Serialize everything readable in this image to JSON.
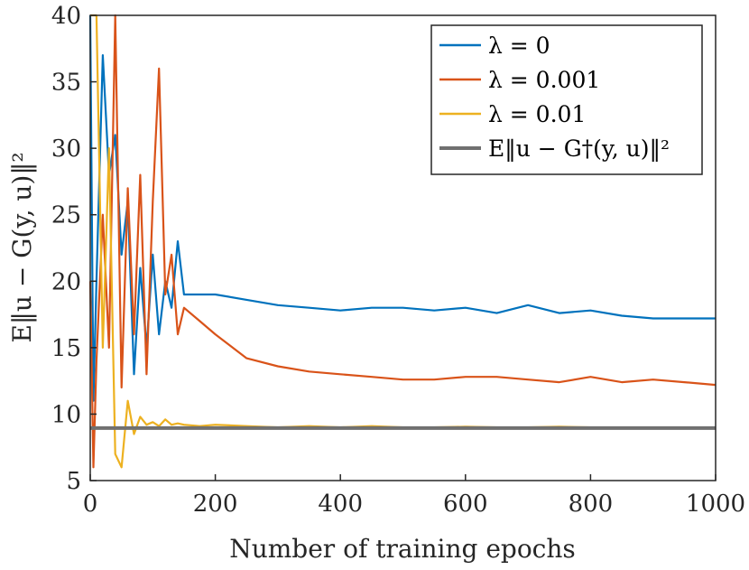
{
  "chart_data": {
    "type": "line",
    "title": "",
    "xlabel": "Number of training epochs",
    "ylabel": "E‖u − G(y, u)‖²",
    "xlim": [
      0,
      1000
    ],
    "ylim": [
      5,
      40
    ],
    "xticks": [
      0,
      200,
      400,
      600,
      800,
      1000
    ],
    "yticks": [
      5,
      10,
      15,
      20,
      25,
      30,
      35,
      40
    ],
    "xtick_labels": [
      "0",
      "200",
      "400",
      "600",
      "800",
      "1000"
    ],
    "ytick_labels": [
      "5",
      "10",
      "15",
      "20",
      "25",
      "30",
      "35",
      "40"
    ],
    "grid": false,
    "legend_position": "top-right",
    "series": [
      {
        "name": "λ = 0",
        "color": "#0072BD",
        "x": [
          0,
          5,
          10,
          20,
          30,
          40,
          50,
          60,
          70,
          80,
          90,
          100,
          110,
          120,
          130,
          140,
          150,
          175,
          200,
          250,
          300,
          350,
          400,
          450,
          500,
          550,
          600,
          650,
          700,
          750,
          800,
          850,
          900,
          950,
          1000
        ],
        "values": [
          40,
          11,
          20,
          37,
          28,
          31,
          22,
          26,
          13,
          21,
          15,
          22,
          16,
          20,
          18,
          23,
          19,
          19,
          19,
          18.6,
          18.2,
          18.0,
          17.8,
          18.0,
          18.0,
          17.8,
          18.0,
          17.6,
          18.2,
          17.6,
          17.8,
          17.4,
          17.2,
          17.2,
          17.2
        ]
      },
      {
        "name": "λ = 0.001",
        "color": "#D95319",
        "x": [
          0,
          5,
          10,
          20,
          30,
          40,
          50,
          60,
          70,
          80,
          90,
          100,
          110,
          120,
          130,
          140,
          150,
          175,
          200,
          250,
          300,
          350,
          400,
          450,
          500,
          550,
          600,
          650,
          700,
          750,
          800,
          850,
          900,
          950,
          1000
        ],
        "values": [
          20,
          6,
          14,
          25,
          15,
          40,
          12,
          27,
          16,
          28,
          13,
          26,
          36,
          19,
          22,
          16,
          18,
          17,
          16,
          14.2,
          13.6,
          13.2,
          13.0,
          12.8,
          12.6,
          12.6,
          12.8,
          12.8,
          12.6,
          12.4,
          12.8,
          12.4,
          12.6,
          12.4,
          12.2
        ]
      },
      {
        "name": "λ = 0.01",
        "color": "#EDB120",
        "x": [
          0,
          5,
          10,
          20,
          30,
          40,
          50,
          60,
          70,
          80,
          90,
          100,
          110,
          120,
          130,
          140,
          150,
          175,
          200,
          250,
          300,
          350,
          400,
          450,
          500,
          550,
          600,
          650,
          700,
          750,
          800,
          850,
          900,
          950,
          1000
        ],
        "values": [
          40,
          40,
          40,
          15,
          30,
          7,
          6,
          11,
          8.5,
          9.8,
          9.2,
          9.4,
          9.1,
          9.6,
          9.2,
          9.3,
          9.2,
          9.1,
          9.2,
          9.1,
          9.0,
          9.1,
          9.0,
          9.1,
          9.0,
          9.0,
          9.05,
          9.0,
          9.0,
          9.05,
          9.0,
          9.0,
          9.0,
          9.0,
          9.0
        ]
      },
      {
        "name": "E‖u − G†(y, u)‖²",
        "color": "#707070",
        "x": [
          0,
          1000
        ],
        "values": [
          8.95,
          8.95
        ]
      }
    ]
  }
}
